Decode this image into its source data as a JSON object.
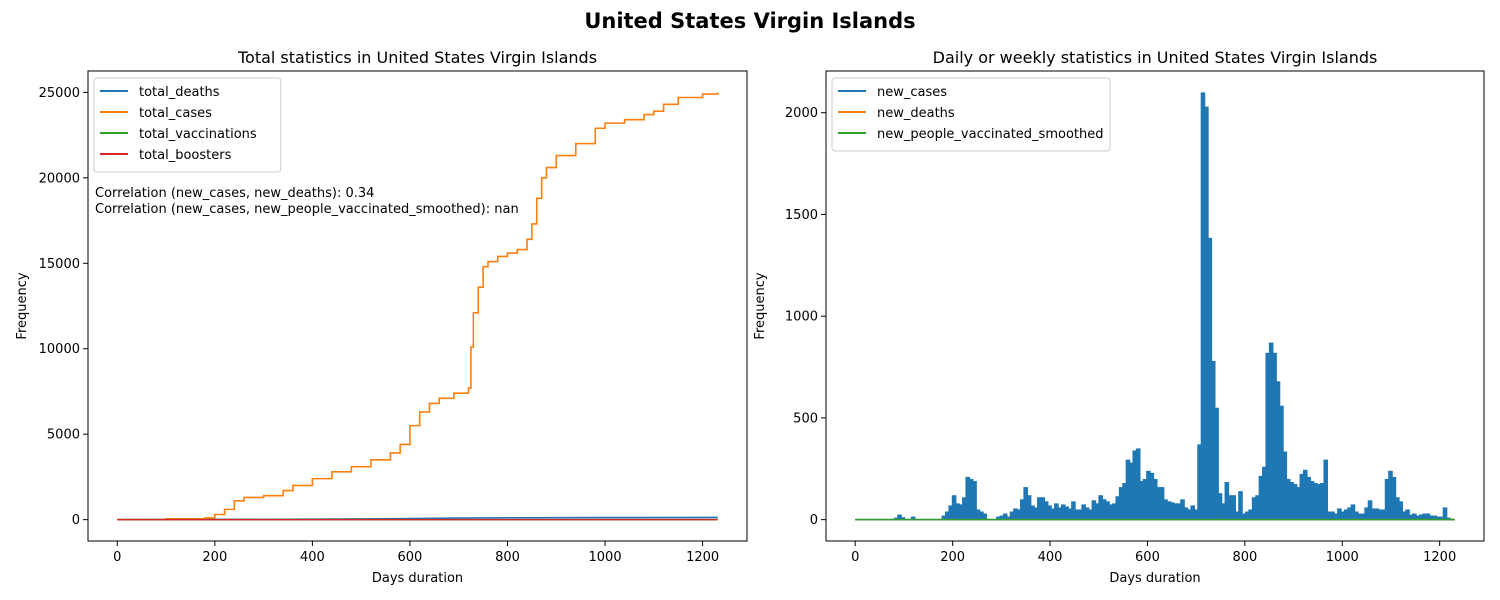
{
  "figure": {
    "suptitle": "United States Virgin Islands"
  },
  "colors": {
    "blue": "#1f77b4",
    "orange": "#ff7f0e",
    "green": "#2ca02c",
    "red": "#d62728"
  },
  "chart_data": [
    {
      "type": "line",
      "title": "Total statistics in United States Virgin Islands",
      "xlabel": "Days duration",
      "ylabel": "Frequency",
      "xlim": [
        -60,
        1291
      ],
      "ylim": [
        -1250,
        26250
      ],
      "xticks": [
        0,
        200,
        400,
        600,
        800,
        1000,
        1200
      ],
      "yticks": [
        0,
        5000,
        10000,
        15000,
        20000,
        25000
      ],
      "legend_position": "top-left",
      "annotations": [
        "Correlation (new_cases, new_deaths): 0.34",
        "Correlation (new_cases, new_people_vaccinated_smoothed): nan"
      ],
      "series": [
        {
          "name": "total_deaths",
          "color": "#1f77b4",
          "x": [
            0,
            200,
            400,
            600,
            700,
            800,
            1000,
            1231
          ],
          "y": [
            0,
            10,
            25,
            60,
            90,
            110,
            120,
            130
          ]
        },
        {
          "name": "total_cases",
          "color": "#ff7f0e",
          "x": [
            0,
            100,
            180,
            200,
            220,
            240,
            260,
            300,
            340,
            360,
            400,
            440,
            480,
            520,
            560,
            580,
            600,
            620,
            640,
            660,
            690,
            720,
            725,
            730,
            740,
            750,
            760,
            780,
            800,
            820,
            840,
            850,
            860,
            870,
            880,
            900,
            940,
            980,
            1000,
            1040,
            1080,
            1100,
            1120,
            1150,
            1200,
            1231
          ],
          "y": [
            0,
            50,
            100,
            300,
            600,
            1100,
            1300,
            1400,
            1700,
            2000,
            2400,
            2800,
            3100,
            3500,
            3900,
            4400,
            5500,
            6300,
            6800,
            7100,
            7400,
            7700,
            10100,
            12100,
            13600,
            14800,
            15100,
            15400,
            15600,
            15800,
            16400,
            17300,
            18800,
            20000,
            20600,
            21300,
            22000,
            22900,
            23200,
            23400,
            23700,
            23900,
            24300,
            24700,
            24900,
            25000
          ]
        },
        {
          "name": "total_vaccinations",
          "color": "#2ca02c",
          "x": [
            0,
            1231
          ],
          "y": [
            0,
            0
          ]
        },
        {
          "name": "total_boosters",
          "color": "#d62728",
          "x": [
            0,
            1231
          ],
          "y": [
            0,
            0
          ]
        }
      ]
    },
    {
      "type": "line",
      "title": "Daily or weekly statistics in United States Virgin Islands",
      "xlabel": "Days duration",
      "ylabel": "Frequency",
      "xlim": [
        -60,
        1291
      ],
      "ylim": [
        -105,
        2205
      ],
      "xticks": [
        0,
        200,
        400,
        600,
        800,
        1000,
        1200
      ],
      "yticks": [
        0,
        500,
        1000,
        1500,
        2000
      ],
      "legend_position": "top-left",
      "series": [
        {
          "name": "new_cases",
          "color": "#1f77b4",
          "style": "spikes",
          "x": [
            84,
            91,
            98,
            119,
            182,
            189,
            196,
            203,
            210,
            217,
            224,
            231,
            238,
            245,
            252,
            259,
            266,
            294,
            301,
            308,
            315,
            322,
            329,
            336,
            343,
            350,
            357,
            364,
            371,
            378,
            385,
            392,
            399,
            406,
            413,
            420,
            427,
            434,
            441,
            448,
            455,
            462,
            469,
            476,
            483,
            490,
            497,
            504,
            511,
            518,
            525,
            532,
            539,
            546,
            553,
            560,
            567,
            574,
            581,
            588,
            595,
            602,
            609,
            616,
            623,
            630,
            637,
            644,
            651,
            658,
            665,
            672,
            679,
            686,
            693,
            700,
            707,
            714,
            721,
            728,
            735,
            742,
            749,
            756,
            763,
            770,
            777,
            784,
            791,
            798,
            805,
            812,
            819,
            826,
            833,
            840,
            847,
            854,
            861,
            868,
            875,
            882,
            889,
            896,
            903,
            910,
            917,
            924,
            931,
            938,
            945,
            952,
            959,
            966,
            973,
            980,
            987,
            994,
            1001,
            1008,
            1015,
            1022,
            1029,
            1036,
            1043,
            1050,
            1057,
            1064,
            1071,
            1078,
            1085,
            1092,
            1099,
            1106,
            1113,
            1120,
            1127,
            1134,
            1141,
            1148,
            1155,
            1162,
            1169,
            1176,
            1183,
            1190,
            1197,
            1204,
            1211,
            1218,
            1225
          ],
          "y": [
            10,
            25,
            12,
            15,
            20,
            40,
            70,
            120,
            80,
            75,
            110,
            210,
            200,
            190,
            50,
            40,
            30,
            15,
            20,
            30,
            15,
            40,
            55,
            50,
            100,
            160,
            120,
            70,
            60,
            110,
            110,
            90,
            70,
            55,
            80,
            60,
            75,
            65,
            55,
            90,
            50,
            50,
            75,
            60,
            50,
            95,
            80,
            120,
            100,
            90,
            75,
            80,
            115,
            160,
            180,
            295,
            280,
            340,
            350,
            190,
            200,
            240,
            230,
            200,
            160,
            160,
            100,
            90,
            85,
            80,
            80,
            100,
            60,
            50,
            70,
            50,
            370,
            2100,
            2030,
            1385,
            780,
            550,
            130,
            80,
            185,
            120,
            120,
            40,
            140,
            30,
            40,
            50,
            110,
            120,
            215,
            260,
            820,
            870,
            820,
            680,
            560,
            335,
            200,
            185,
            175,
            160,
            225,
            245,
            210,
            190,
            180,
            175,
            180,
            295,
            40,
            40,
            30,
            55,
            40,
            50,
            60,
            75,
            40,
            30,
            30,
            60,
            95,
            55,
            55,
            50,
            50,
            200,
            240,
            210,
            110,
            90,
            40,
            50,
            25,
            30,
            20,
            25,
            30,
            30,
            20,
            20,
            15,
            15,
            60,
            10,
            5
          ]
        },
        {
          "name": "new_deaths",
          "color": "#ff7f0e",
          "x": [
            0,
            1231
          ],
          "y": [
            0,
            0
          ]
        },
        {
          "name": "new_people_vaccinated_smoothed",
          "color": "#2ca02c",
          "x": [
            0,
            1231
          ],
          "y": [
            0,
            0
          ]
        }
      ]
    }
  ]
}
